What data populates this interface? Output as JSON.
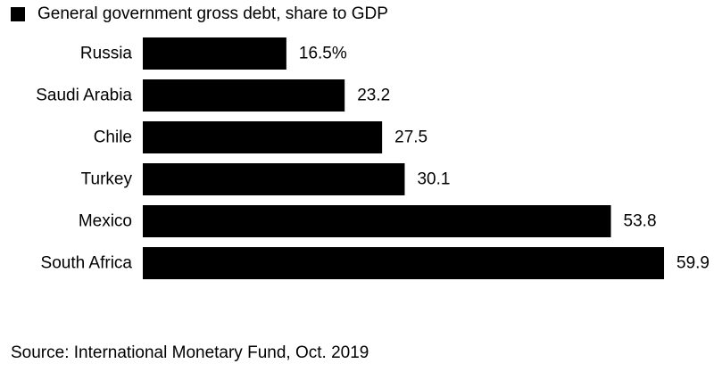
{
  "legend": {
    "label": "General government gross debt, share to GDP",
    "color": "#000000"
  },
  "source": "Source: International Monetary Fund, Oct. 2019",
  "chart_data": {
    "type": "bar",
    "orientation": "horizontal",
    "categories": [
      "Russia",
      "Saudi Arabia",
      "Chile",
      "Turkey",
      "Mexico",
      "South Africa"
    ],
    "series": [
      {
        "name": "General government gross debt, share to GDP",
        "values": [
          16.5,
          23.2,
          27.5,
          30.1,
          53.8,
          59.9
        ],
        "value_labels": [
          "16.5%",
          "23.2",
          "27.5",
          "30.1",
          "53.8",
          "59.9"
        ],
        "color": "#000000"
      }
    ],
    "xlim": [
      0,
      60
    ],
    "grid": false,
    "legend_position": "top-left"
  }
}
